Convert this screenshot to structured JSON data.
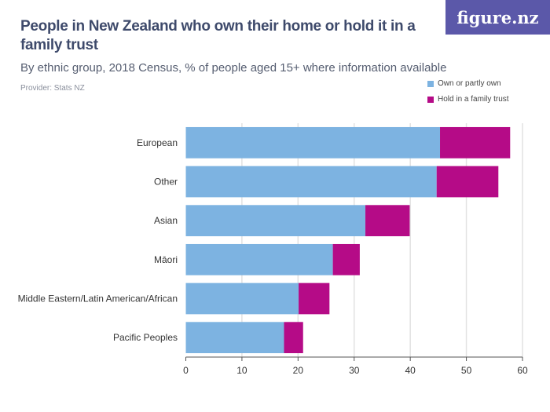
{
  "title": "People in New Zealand who own their home or hold it in a family trust",
  "subtitle": "By ethnic group, 2018 Census, % of people aged 15+ where information available",
  "provider": "Provider: Stats NZ",
  "logo": "figure.nz",
  "colors": {
    "own": "#7db3e1",
    "trust": "#b50b87",
    "title": "#3e4a6b",
    "logo_bg": "#5b58a9"
  },
  "chart_data": {
    "type": "bar",
    "orientation": "horizontal",
    "stacked": true,
    "categories": [
      "European",
      "Other",
      "Asian",
      "Māori",
      "Middle Eastern/Latin American/African",
      "Pacific Peoples"
    ],
    "series": [
      {
        "name": "Own or partly own",
        "values": [
          45.3,
          44.7,
          32.0,
          26.2,
          20.1,
          17.5
        ]
      },
      {
        "name": "Hold in a family trust",
        "values": [
          12.5,
          11.0,
          7.9,
          4.8,
          5.5,
          3.4
        ]
      }
    ],
    "xlim": [
      0,
      60
    ],
    "xticks": [
      "0",
      "10",
      "20",
      "30",
      "40",
      "50",
      "60"
    ],
    "grid": true,
    "legend": "top-right"
  }
}
